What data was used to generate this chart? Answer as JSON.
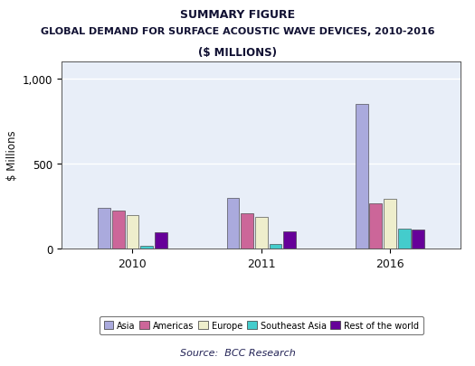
{
  "title1": "SUMMARY FIGURE",
  "title2": "GLOBAL DEMAND FOR SURFACE ACOUSTIC WAVE DEVICES, 2010-2016",
  "title3": "($ MILLIONS)",
  "years": [
    "2010",
    "2011",
    "2016"
  ],
  "categories": [
    "Asia",
    "Americas",
    "Europe",
    "Southeast Asia",
    "Rest of the world"
  ],
  "values": {
    "Asia": [
      240,
      300,
      850
    ],
    "Americas": [
      225,
      210,
      265
    ],
    "Europe": [
      195,
      185,
      295
    ],
    "Southeast Asia": [
      18,
      28,
      115
    ],
    "Rest of the world": [
      95,
      100,
      110
    ]
  },
  "colors": {
    "Asia": "#aaaadd",
    "Americas": "#cc6699",
    "Europe": "#eeeecc",
    "Southeast Asia": "#44cccc",
    "Rest of the world": "#660099"
  },
  "ylabel": "$ Millions",
  "ylim": [
    0,
    1100
  ],
  "yticks": [
    0,
    500,
    1000
  ],
  "ytick_labels": [
    "0",
    "500",
    "1,000"
  ],
  "source": "Source:  BCC Research",
  "fig_bg": "#ffffff",
  "plot_bg": "#e8eef8",
  "grid_color": "#ffffff"
}
